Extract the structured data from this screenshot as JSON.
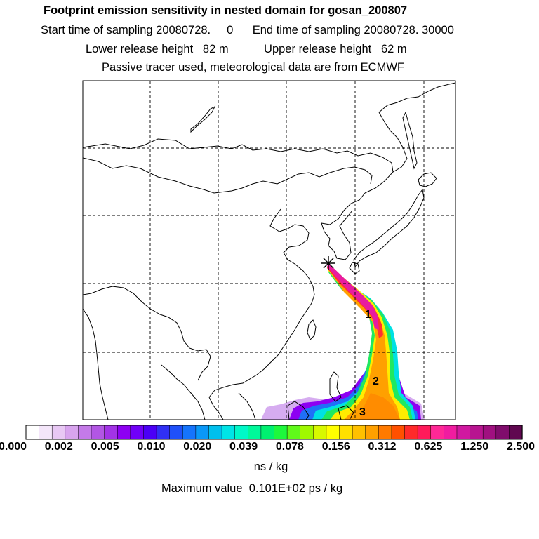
{
  "header": {
    "title": "Footprint emission sensitivity in nested domain for gosan_200807",
    "sampling": "Start time of sampling 20080728.     0      End time of sampling 20080728. 30000",
    "release": "Lower release height   82 m           Upper release height   62 m",
    "tracer": "Passive tracer used, meteorological data are from ECMWF"
  },
  "map": {
    "release_marker": "release-site-star",
    "labels": [
      "1",
      "2",
      "3"
    ],
    "gridlines": "dashed"
  },
  "colorbar": {
    "ticks": [
      "0.000",
      "0.002",
      "0.005",
      "0.010",
      "0.020",
      "0.039",
      "0.078",
      "0.156",
      "0.312",
      "0.625",
      "1.250",
      "2.500"
    ],
    "colors": [
      "#ffffff",
      "#f4e6fa",
      "#e8c8f4",
      "#d8a4ee",
      "#c47ae8",
      "#b256e4",
      "#a233e6",
      "#8d00f2",
      "#7000f8",
      "#4b00f6",
      "#3030f4",
      "#1f50fa",
      "#1574fc",
      "#0a98f8",
      "#00c0ee",
      "#00e4e6",
      "#00f8c8",
      "#00f89a",
      "#00f070",
      "#1ef83c",
      "#60fa1a",
      "#a0f800",
      "#d8f800",
      "#ffff00",
      "#ffe000",
      "#ffc000",
      "#ffa000",
      "#ff7a00",
      "#ff5000",
      "#ff2a2a",
      "#ff1a5a",
      "#ff2896",
      "#f01ca0",
      "#d018a0",
      "#b81490",
      "#a01080",
      "#800c6c",
      "#600850"
    ],
    "unit": "ns / kg"
  },
  "footer": {
    "max_label": "Maximum value  0.101E+02 ps / kg"
  }
}
